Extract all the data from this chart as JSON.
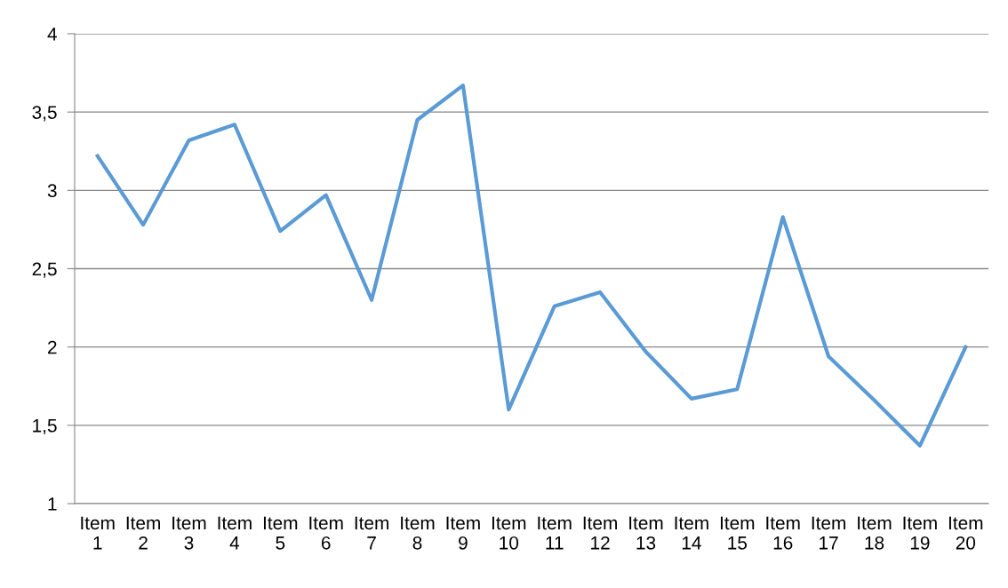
{
  "chart_data": {
    "type": "line",
    "categories": [
      "Item\n1",
      "Item\n2",
      "Item\n3",
      "Item\n4",
      "Item\n5",
      "Item\n6",
      "Item\n7",
      "Item\n8",
      "Item\n9",
      "Item\n10",
      "Item\n11",
      "Item\n12",
      "Item\n13",
      "Item\n14",
      "Item\n15",
      "Item\n16",
      "Item\n17",
      "Item\n18",
      "Item\n19",
      "Item\n20"
    ],
    "series": [
      {
        "color": "#5b9bd5",
        "values": [
          3.22,
          2.78,
          3.32,
          3.42,
          2.74,
          2.97,
          2.3,
          3.45,
          3.67,
          1.6,
          2.26,
          2.35,
          1.97,
          1.67,
          1.73,
          2.83,
          1.94,
          1.66,
          1.37,
          2.0
        ]
      }
    ],
    "ylim": [
      1,
      4
    ],
    "yticks": [
      1,
      {
        "value": 1.5,
        "label": "1,5"
      },
      2,
      {
        "value": 2.5,
        "label": "2,5"
      },
      3,
      {
        "value": 3.5,
        "label": "3,5"
      },
      4
    ],
    "grid": "y",
    "legend": false,
    "marker": "none",
    "line_style": "solid"
  }
}
